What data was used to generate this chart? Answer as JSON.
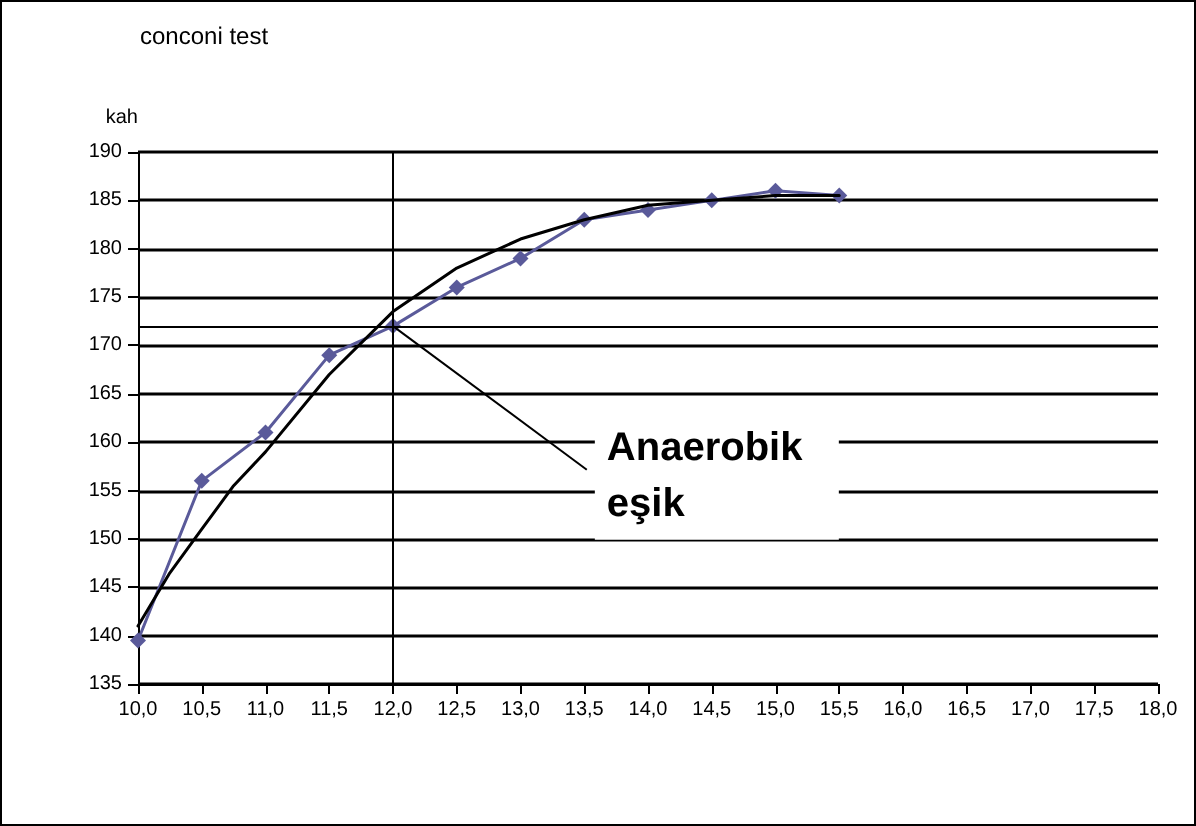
{
  "chart_data": {
    "type": "line",
    "title": "conconi test",
    "ylabel": "kah",
    "series": [
      {
        "color": "#5a5a9a",
        "marker": "diamond",
        "x": [
          10.0,
          10.5,
          11.0,
          11.5,
          12.0,
          12.5,
          13.0,
          13.5,
          14.0,
          14.5,
          15.0,
          15.5
        ],
        "values": [
          139.5,
          156,
          161,
          169,
          172,
          176,
          179,
          183,
          184,
          185,
          186,
          185.5
        ]
      },
      {
        "color": "#000000",
        "marker": "none",
        "x": [
          10.0,
          10.25,
          10.5,
          10.75,
          11.0,
          11.5,
          12.0,
          12.5,
          13.0,
          13.5,
          14.0,
          14.5,
          15.0,
          15.5
        ],
        "values": [
          141,
          146.5,
          151,
          155.5,
          159,
          167,
          173.5,
          178,
          181,
          183,
          184.5,
          185,
          185.5,
          185.5
        ]
      }
    ],
    "xlim": [
      10,
      18
    ],
    "xticks": [
      {
        "value": 10,
        "label": "10,0"
      },
      {
        "value": 10.5,
        "label": "10,5"
      },
      {
        "value": 11,
        "label": "11,0"
      },
      {
        "value": 11.5,
        "label": "11,5"
      },
      {
        "value": 12,
        "label": "12,0"
      },
      {
        "value": 12.5,
        "label": "12,5"
      },
      {
        "value": 13,
        "label": "13,0"
      },
      {
        "value": 13.5,
        "label": "13,5"
      },
      {
        "value": 14,
        "label": "14,0"
      },
      {
        "value": 14.5,
        "label": "14,5"
      },
      {
        "value": 15,
        "label": "15,0"
      },
      {
        "value": 15.5,
        "label": "15,5"
      },
      {
        "value": 16,
        "label": "16,0"
      },
      {
        "value": 16.5,
        "label": "16,5"
      },
      {
        "value": 17,
        "label": "17,0"
      },
      {
        "value": 17.5,
        "label": "17,5"
      },
      {
        "value": 18,
        "label": "18,0"
      }
    ],
    "ylim": [
      135,
      190
    ],
    "yticks": [
      135,
      140,
      145,
      150,
      155,
      160,
      165,
      170,
      175,
      180,
      185,
      190
    ],
    "ref_lines": [
      {
        "axis": "x",
        "value": 12,
        "label": null,
        "color": "#000000"
      },
      {
        "axis": "y",
        "value": 172,
        "label": null,
        "color": "#000000"
      }
    ],
    "annotations": [
      {
        "text": "Anaerobik eşik",
        "x": 12,
        "y": 172
      }
    ],
    "grid": "y",
    "line_style": "solid"
  }
}
